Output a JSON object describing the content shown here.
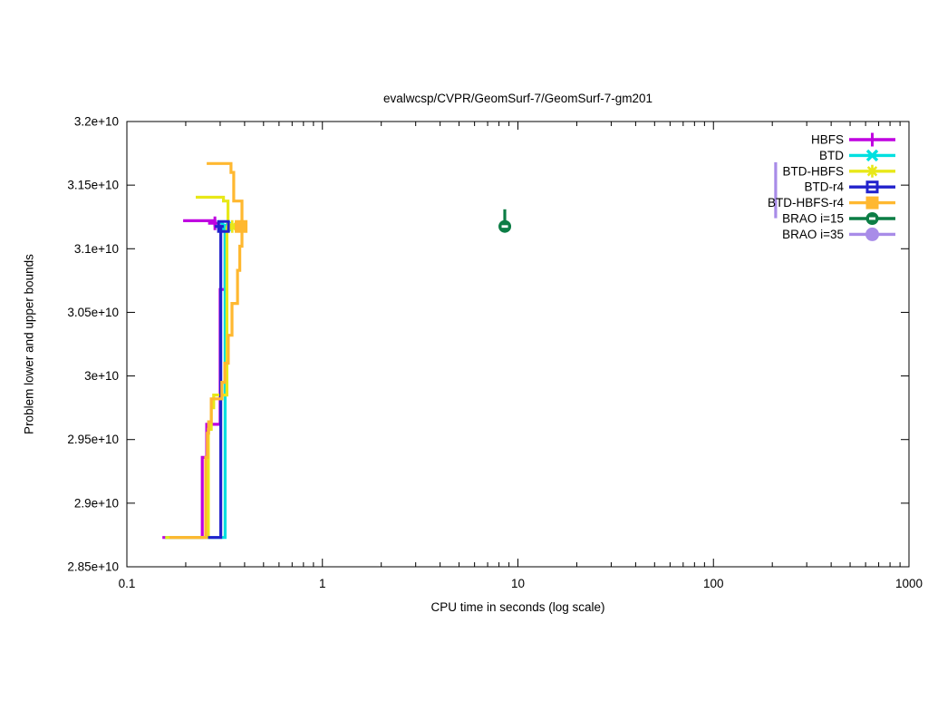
{
  "chart_data": {
    "type": "line",
    "title": "evalwcsp/CVPR/GeomSurf-7/GeomSurf-7-gm201",
    "xlabel": "CPU time in seconds (log scale)",
    "ylabel": "Problem lower and upper bounds",
    "x_scale": "log",
    "grid": false,
    "legend_position": "top-right-inside",
    "xlim": [
      0.1,
      1000
    ],
    "ylim": [
      28500000000.0,
      32000000000.0
    ],
    "x_ticks": [
      0.1,
      1,
      10,
      100,
      1000
    ],
    "x_tick_labels": [
      "0.1",
      "1",
      "10",
      "100",
      "1000"
    ],
    "y_ticks": [
      28500000000.0,
      29000000000.0,
      29500000000.0,
      30000000000.0,
      30500000000.0,
      31000000000.0,
      31500000000.0,
      32000000000.0
    ],
    "y_tick_labels": [
      "2.85e+10",
      "2.9e+10",
      "2.95e+10",
      "3e+10",
      "3.05e+10",
      "3.1e+10",
      "3.15e+10",
      "3.2e+10"
    ],
    "series": [
      {
        "name": "HBFS",
        "color": "#bf00e0",
        "marker": "plus",
        "segments": [
          [
            [
              0.194,
              31220000000.0
            ],
            [
              0.282,
              31220000000.0
            ],
            [
              0.282,
              31175000000.0
            ]
          ],
          [
            [
              0.152,
              28730000000.0
            ],
            [
              0.243,
              28730000000.0
            ],
            [
              0.243,
              29360000000.0
            ],
            [
              0.256,
              29360000000.0
            ],
            [
              0.256,
              29620000000.0
            ],
            [
              0.3,
              29620000000.0
            ],
            [
              0.3,
              30680000000.0
            ],
            [
              0.318,
              30680000000.0
            ],
            [
              0.318,
              31175000000.0
            ]
          ]
        ],
        "marker_points": [
          [
            0.282,
            31200000000.0
          ]
        ]
      },
      {
        "name": "BTD",
        "color": "#00e0e0",
        "marker": "x",
        "segments": [
          [
            [
              0.157,
              28730000000.0
            ],
            [
              0.318,
              28730000000.0
            ],
            [
              0.318,
              31175000000.0
            ]
          ],
          [
            [
              0.3,
              31175000000.0
            ],
            [
              0.322,
              31175000000.0
            ]
          ]
        ],
        "marker_points": [
          [
            0.318,
            31175000000.0
          ]
        ]
      },
      {
        "name": "BTD-HBFS",
        "color": "#e8e818",
        "marker": "star",
        "segments": [
          [
            [
              0.225,
              31405000000.0
            ],
            [
              0.312,
              31405000000.0
            ],
            [
              0.312,
              31375000000.0
            ],
            [
              0.329,
              31375000000.0
            ],
            [
              0.329,
              31175000000.0
            ]
          ],
          [
            [
              0.157,
              28730000000.0
            ],
            [
              0.261,
              28730000000.0
            ],
            [
              0.261,
              29580000000.0
            ],
            [
              0.27,
              29580000000.0
            ],
            [
              0.27,
              29750000000.0
            ],
            [
              0.278,
              29750000000.0
            ],
            [
              0.278,
              29850000000.0
            ],
            [
              0.325,
              29850000000.0
            ],
            [
              0.325,
              31175000000.0
            ]
          ]
        ],
        "marker_points": [
          [
            0.346,
            31175000000.0
          ]
        ]
      },
      {
        "name": "BTD-r4",
        "color": "#2222cc",
        "marker": "square-open",
        "segments": [
          [
            [
              0.26,
              28730000000.0
            ],
            [
              0.302,
              28730000000.0
            ],
            [
              0.302,
              31175000000.0
            ]
          ],
          [
            [
              0.282,
              31175000000.0
            ],
            [
              0.313,
              31175000000.0
            ]
          ]
        ],
        "marker_points": [
          [
            0.312,
            31175000000.0
          ]
        ]
      },
      {
        "name": "BTD-HBFS-r4",
        "color": "#ffb830",
        "marker": "square-filled",
        "segments": [
          [
            [
              0.256,
              31670000000.0
            ],
            [
              0.341,
              31670000000.0
            ],
            [
              0.341,
              31600000000.0
            ],
            [
              0.352,
              31600000000.0
            ],
            [
              0.352,
              31375000000.0
            ],
            [
              0.388,
              31375000000.0
            ],
            [
              0.388,
              31175000000.0
            ]
          ],
          [
            [
              0.165,
              28730000000.0
            ],
            [
              0.253,
              28730000000.0
            ],
            [
              0.253,
              29360000000.0
            ],
            [
              0.258,
              29360000000.0
            ],
            [
              0.258,
              29550000000.0
            ],
            [
              0.262,
              29550000000.0
            ],
            [
              0.262,
              29640000000.0
            ],
            [
              0.27,
              29640000000.0
            ],
            [
              0.27,
              29820000000.0
            ],
            [
              0.306,
              29820000000.0
            ],
            [
              0.306,
              29950000000.0
            ],
            [
              0.317,
              29950000000.0
            ],
            [
              0.317,
              30100000000.0
            ],
            [
              0.33,
              30100000000.0
            ],
            [
              0.33,
              30320000000.0
            ],
            [
              0.345,
              30320000000.0
            ],
            [
              0.345,
              30570000000.0
            ],
            [
              0.368,
              30570000000.0
            ],
            [
              0.368,
              30830000000.0
            ],
            [
              0.378,
              30830000000.0
            ],
            [
              0.378,
              31020000000.0
            ],
            [
              0.388,
              31020000000.0
            ],
            [
              0.388,
              31175000000.0
            ]
          ]
        ],
        "marker_points": [
          [
            0.384,
            31175000000.0
          ]
        ]
      },
      {
        "name": "BRAO i=15",
        "color": "#0c7d45",
        "marker": "circle-dash",
        "segments": [
          [
            [
              8.57,
              31175000000.0
            ],
            [
              8.57,
              31310000000.0
            ]
          ]
        ],
        "marker_points": [
          [
            8.57,
            31175000000.0
          ]
        ]
      },
      {
        "name": "BRAO i=35",
        "color": "#a88ce8",
        "marker": "circle-filled",
        "segments": [
          [
            [
              208,
              31240000000.0
            ],
            [
              208,
              31680000000.0
            ]
          ]
        ],
        "marker_points": []
      }
    ]
  }
}
